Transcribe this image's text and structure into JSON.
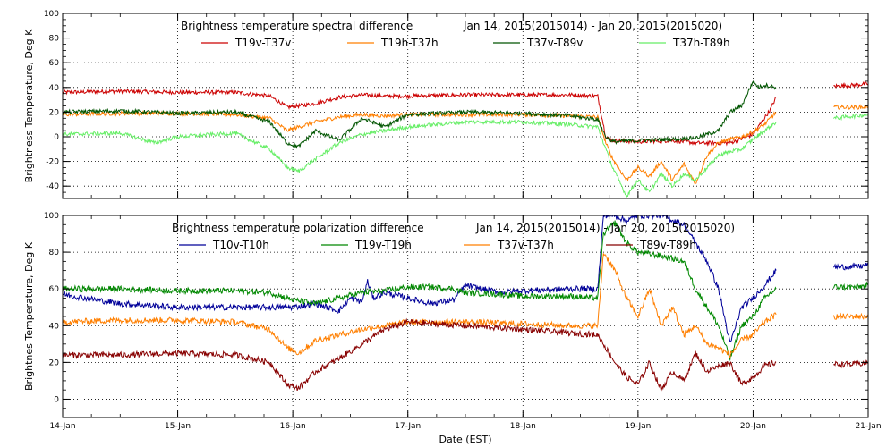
{
  "colors": {
    "red": "#cc0000",
    "orange": "#ff7f00",
    "dark_green": "#005500",
    "light_green": "#66ee66",
    "blue": "#000099",
    "green": "#008800",
    "dark_red": "#880000"
  },
  "chart_data": [
    {
      "type": "line",
      "title_left": "Brightness temperature spectral difference",
      "title_right": "Jan 14, 2015(2015014) - Jan 20, 2015(2015020)",
      "ylabel": "Brightness Temperature, Deg K",
      "xlabel": "",
      "xlim": [
        0,
        7
      ],
      "ylim": [
        -50,
        100
      ],
      "yticks": [
        -40,
        -20,
        0,
        20,
        40,
        60,
        80,
        100
      ],
      "x_tick_positions": [
        0,
        1,
        2,
        3,
        4,
        5,
        6,
        7
      ],
      "x_tick_labels": [
        "",
        "",
        "",
        "",
        "",
        "",
        "",
        ""
      ],
      "grid": true,
      "legend_placement": "top-center",
      "series": [
        {
          "name": "T19v-T37v",
          "color": "red",
          "segments": [
            {
              "x": [
                0,
                0.5,
                1.0,
                1.5,
                1.8,
                1.95,
                2.05,
                2.2,
                2.4,
                2.6,
                2.8,
                3.0,
                3.5,
                4.0,
                4.4,
                4.65,
                4.72,
                4.78,
                5.0,
                5.3,
                5.5,
                5.8,
                6.0,
                6.15,
                6.2
              ],
              "y": [
                36,
                37,
                36,
                36,
                33,
                24,
                25,
                27,
                32,
                34,
                33,
                33,
                34,
                34,
                34,
                33,
                0,
                -3,
                -4,
                -3,
                -5,
                -5,
                2,
                22,
                32
              ]
            },
            {
              "x": [
                6.7,
                6.9,
                7.0
              ],
              "y": [
                41,
                42,
                43
              ]
            }
          ]
        },
        {
          "name": "T19h-T37h",
          "color": "orange",
          "segments": [
            {
              "x": [
                0,
                0.5,
                1.0,
                1.5,
                1.8,
                1.95,
                2.05,
                2.2,
                2.4,
                2.6,
                2.8,
                3.0,
                3.5,
                4.0,
                4.4,
                4.65,
                4.72,
                4.78,
                4.9,
                5.0,
                5.1,
                5.2,
                5.3,
                5.4,
                5.5,
                5.6,
                5.7,
                5.8,
                5.9,
                6.0,
                6.1,
                6.2
              ],
              "y": [
                18,
                19,
                19,
                18,
                15,
                5,
                8,
                12,
                16,
                18,
                17,
                18,
                18,
                18,
                17,
                16,
                -5,
                -18,
                -35,
                -25,
                -32,
                -20,
                -35,
                -22,
                -38,
                -15,
                -5,
                -2,
                0,
                4,
                10,
                20
              ]
            },
            {
              "x": [
                6.7,
                6.9,
                7.0
              ],
              "y": [
                24,
                24,
                24
              ]
            }
          ]
        },
        {
          "name": "T37v-T89v",
          "color": "dark_green",
          "segments": [
            {
              "x": [
                0,
                0.5,
                1.0,
                1.5,
                1.8,
                1.95,
                2.05,
                2.2,
                2.4,
                2.6,
                2.8,
                3.0,
                3.5,
                4.0,
                4.4,
                4.65,
                4.72,
                4.78,
                5.0,
                5.3,
                5.5,
                5.7,
                5.8,
                5.9,
                6.0,
                6.05,
                6.1,
                6.2
              ],
              "y": [
                20,
                21,
                19,
                20,
                12,
                -5,
                -8,
                5,
                -3,
                15,
                8,
                18,
                20,
                19,
                17,
                14,
                0,
                -4,
                -3,
                -2,
                -1,
                5,
                20,
                25,
                45,
                40,
                42,
                40
              ]
            }
          ]
        },
        {
          "name": "T37h-T89h",
          "color": "light_green",
          "segments": [
            {
              "x": [
                0,
                0.5,
                0.8,
                1.0,
                1.5,
                1.8,
                1.95,
                2.05,
                2.2,
                2.4,
                2.6,
                2.8,
                3.0,
                3.5,
                4.0,
                4.4,
                4.65,
                4.72,
                4.78,
                4.9,
                5.0,
                5.1,
                5.2,
                5.3,
                5.4,
                5.5,
                5.6,
                5.7,
                5.8,
                5.9,
                6.0,
                6.1,
                6.2
              ],
              "y": [
                2,
                3,
                -5,
                0,
                3,
                -10,
                -25,
                -28,
                -18,
                -5,
                2,
                5,
                8,
                12,
                12,
                10,
                8,
                -10,
                -25,
                -48,
                -35,
                -45,
                -30,
                -40,
                -30,
                -35,
                -25,
                -15,
                -12,
                -10,
                -2,
                5,
                12
              ]
            },
            {
              "x": [
                6.7,
                6.9,
                7.0
              ],
              "y": [
                15,
                17,
                18
              ]
            }
          ]
        }
      ]
    },
    {
      "type": "line",
      "title_left": "Brightness temperature polarization difference",
      "title_right": "Jan 14, 2015(2015014) - Jan 20, 2015(2015020)",
      "ylabel": "Brightnes Temperature, Deg K",
      "xlabel": "Date (EST)",
      "xlim": [
        0,
        7
      ],
      "ylim": [
        -10,
        100
      ],
      "yticks": [
        0,
        20,
        40,
        60,
        80,
        100
      ],
      "x_tick_positions": [
        0,
        1,
        2,
        3,
        4,
        5,
        6,
        7
      ],
      "x_tick_labels": [
        "14-Jan",
        "15-Jan",
        "16-Jan",
        "17-Jan",
        "18-Jan",
        "19-Jan",
        "20-Jan",
        "21-Jan"
      ],
      "grid": true,
      "legend_placement": "top-center",
      "series": [
        {
          "name": "T10v-T10h",
          "color": "blue",
          "segments": [
            {
              "x": [
                0,
                0.5,
                1.0,
                1.5,
                1.8,
                2.0,
                2.2,
                2.4,
                2.5,
                2.6,
                2.65,
                2.7,
                2.8,
                3.0,
                3.2,
                3.4,
                3.5,
                3.8,
                4.0,
                4.4,
                4.65,
                4.7,
                4.8,
                4.9,
                5.0,
                5.2,
                5.4,
                5.5,
                5.6,
                5.7,
                5.8,
                5.9,
                6.0,
                6.1,
                6.2
              ],
              "y": [
                57,
                52,
                50,
                50,
                50,
                50,
                52,
                48,
                55,
                53,
                64,
                55,
                58,
                55,
                52,
                54,
                62,
                58,
                59,
                60,
                60,
                100,
                100,
                97,
                100,
                100,
                95,
                85,
                75,
                60,
                30,
                50,
                55,
                62,
                70
              ]
            },
            {
              "x": [
                6.7,
                6.9,
                7.0
              ],
              "y": [
                72,
                72,
                73
              ]
            }
          ]
        },
        {
          "name": "T19v-T19h",
          "color": "green",
          "segments": [
            {
              "x": [
                0,
                0.5,
                1.0,
                1.5,
                1.8,
                2.0,
                2.2,
                2.4,
                2.6,
                2.8,
                3.0,
                3.2,
                3.4,
                3.5,
                3.8,
                4.0,
                4.4,
                4.65,
                4.7,
                4.8,
                4.9,
                5.0,
                5.2,
                5.4,
                5.5,
                5.6,
                5.7,
                5.8,
                5.9,
                6.0,
                6.1,
                6.2
              ],
              "y": [
                60,
                60,
                59,
                59,
                58,
                54,
                52,
                55,
                58,
                59,
                61,
                61,
                60,
                58,
                57,
                56,
                56,
                55,
                90,
                96,
                85,
                80,
                78,
                75,
                60,
                50,
                40,
                22,
                40,
                45,
                55,
                60
              ]
            },
            {
              "x": [
                6.7,
                6.9,
                7.0
              ],
              "y": [
                61,
                61,
                62
              ]
            }
          ]
        },
        {
          "name": "T37v-T37h",
          "color": "orange",
          "segments": [
            {
              "x": [
                0,
                0.5,
                1.0,
                1.5,
                1.8,
                1.95,
                2.05,
                2.2,
                2.4,
                2.6,
                2.8,
                3.0,
                3.5,
                4.0,
                4.4,
                4.65,
                4.7,
                4.8,
                4.9,
                5.0,
                5.1,
                5.2,
                5.3,
                5.4,
                5.5,
                5.6,
                5.7,
                5.8,
                5.9,
                6.0,
                6.1,
                6.2
              ],
              "y": [
                42,
                43,
                43,
                42,
                38,
                28,
                25,
                32,
                35,
                38,
                40,
                42,
                42,
                41,
                40,
                40,
                80,
                70,
                55,
                45,
                60,
                40,
                50,
                35,
                40,
                30,
                28,
                24,
                32,
                35,
                42,
                46
              ]
            },
            {
              "x": [
                6.7,
                6.9,
                7.0
              ],
              "y": [
                45,
                45,
                45
              ]
            }
          ]
        },
        {
          "name": "T89v-T89h",
          "color": "dark_red",
          "segments": [
            {
              "x": [
                0,
                0.5,
                1.0,
                1.5,
                1.8,
                1.95,
                2.05,
                2.2,
                2.4,
                2.6,
                2.8,
                3.0,
                3.5,
                4.0,
                4.4,
                4.65,
                4.7,
                4.8,
                4.9,
                5.0,
                5.1,
                5.2,
                5.3,
                5.4,
                5.5,
                5.6,
                5.7,
                5.8,
                5.9,
                6.0,
                6.1,
                6.2
              ],
              "y": [
                24,
                24,
                25,
                24,
                20,
                8,
                6,
                15,
                22,
                30,
                38,
                42,
                40,
                38,
                36,
                35,
                30,
                20,
                12,
                8,
                20,
                5,
                15,
                10,
                25,
                15,
                18,
                20,
                8,
                12,
                18,
                20
              ]
            },
            {
              "x": [
                6.7,
                6.9,
                7.0
              ],
              "y": [
                19,
                19,
                20
              ]
            }
          ]
        }
      ]
    }
  ]
}
